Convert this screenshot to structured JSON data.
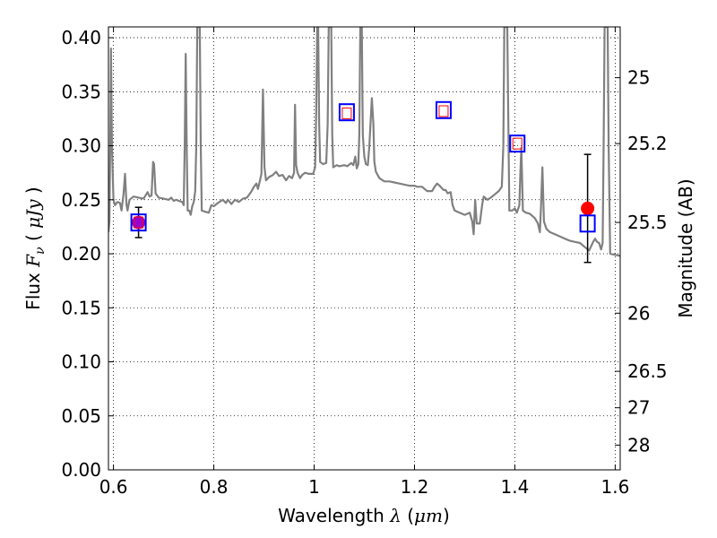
{
  "chart_data": {
    "type": "scatter",
    "xlabel": "Wavelength  λ (μm)",
    "ylabel": "Flux  F_ν ( μJy )",
    "ylabel_parts": {
      "prefix": "Flux  ",
      "symbol": "F",
      "sub": "ν",
      "open": "  (  ",
      "unit": "μJy",
      "close": " )"
    },
    "xlabel_parts": {
      "prefix": "Wavelength  ",
      "symbol": "λ",
      "mid": " (",
      "unit": "μm",
      "close": ")"
    },
    "y2label": "Magnitude (AB)",
    "xlim": [
      0.59,
      1.61
    ],
    "ylim": [
      0.0,
      0.41
    ],
    "grid": true,
    "x_ticks": [
      {
        "value": 0.6,
        "label": "0.6"
      },
      {
        "value": 0.8,
        "label": "0.8"
      },
      {
        "value": 1.0,
        "label": "1"
      },
      {
        "value": 1.2,
        "label": "1.2"
      },
      {
        "value": 1.4,
        "label": "1.4"
      },
      {
        "value": 1.6,
        "label": "1.6"
      }
    ],
    "y_ticks": [
      {
        "value": 0.0,
        "label": "0.00"
      },
      {
        "value": 0.05,
        "label": "0.05"
      },
      {
        "value": 0.1,
        "label": "0.10"
      },
      {
        "value": 0.15,
        "label": "0.15"
      },
      {
        "value": 0.2,
        "label": "0.20"
      },
      {
        "value": 0.25,
        "label": "0.25"
      },
      {
        "value": 0.3,
        "label": "0.30"
      },
      {
        "value": 0.35,
        "label": "0.35"
      },
      {
        "value": 0.4,
        "label": "0.40"
      }
    ],
    "y2_ticks": [
      {
        "flux": 0.363,
        "label": "25"
      },
      {
        "flux": 0.302,
        "label": "25.2"
      },
      {
        "flux": 0.229,
        "label": "25.5"
      },
      {
        "flux": 0.145,
        "label": "26"
      },
      {
        "flux": 0.0912,
        "label": "26.5"
      },
      {
        "flux": 0.0575,
        "label": "27"
      },
      {
        "flux": 0.0229,
        "label": "28"
      }
    ],
    "series": [
      {
        "kind": "line",
        "color": "#808080",
        "points": [
          [
            0.59,
            0.22
          ],
          [
            0.592,
            0.23
          ],
          [
            0.594,
            0.32
          ],
          [
            0.595,
            0.39
          ],
          [
            0.597,
            0.3
          ],
          [
            0.6,
            0.25
          ],
          [
            0.603,
            0.245
          ],
          [
            0.608,
            0.248
          ],
          [
            0.613,
            0.247
          ],
          [
            0.616,
            0.24
          ],
          [
            0.62,
            0.255
          ],
          [
            0.623,
            0.274
          ],
          [
            0.626,
            0.245
          ],
          [
            0.628,
            0.24
          ],
          [
            0.632,
            0.25
          ],
          [
            0.64,
            0.253
          ],
          [
            0.65,
            0.252
          ],
          [
            0.66,
            0.251
          ],
          [
            0.668,
            0.257
          ],
          [
            0.672,
            0.253
          ],
          [
            0.676,
            0.254
          ],
          [
            0.679,
            0.285
          ],
          [
            0.681,
            0.283
          ],
          [
            0.684,
            0.256
          ],
          [
            0.69,
            0.252
          ],
          [
            0.7,
            0.251
          ],
          [
            0.71,
            0.25
          ],
          [
            0.715,
            0.252
          ],
          [
            0.72,
            0.249
          ],
          [
            0.725,
            0.25
          ],
          [
            0.73,
            0.249
          ],
          [
            0.737,
            0.248
          ],
          [
            0.74,
            0.245
          ],
          [
            0.742,
            0.3
          ],
          [
            0.744,
            0.385
          ],
          [
            0.746,
            0.3
          ],
          [
            0.748,
            0.24
          ],
          [
            0.751,
            0.24
          ],
          [
            0.754,
            0.236
          ],
          [
            0.757,
            0.244
          ],
          [
            0.76,
            0.248
          ],
          [
            0.763,
            0.258
          ],
          [
            0.765,
            0.3
          ],
          [
            0.767,
            0.41
          ],
          [
            0.772,
            0.41
          ],
          [
            0.774,
            0.3
          ],
          [
            0.776,
            0.24
          ],
          [
            0.782,
            0.239
          ],
          [
            0.79,
            0.238
          ],
          [
            0.795,
            0.245
          ],
          [
            0.8,
            0.244
          ],
          [
            0.808,
            0.247
          ],
          [
            0.818,
            0.25
          ],
          [
            0.824,
            0.247
          ],
          [
            0.828,
            0.25
          ],
          [
            0.835,
            0.246
          ],
          [
            0.842,
            0.25
          ],
          [
            0.85,
            0.248
          ],
          [
            0.858,
            0.251
          ],
          [
            0.866,
            0.252
          ],
          [
            0.874,
            0.257
          ],
          [
            0.88,
            0.262
          ],
          [
            0.885,
            0.265
          ],
          [
            0.888,
            0.26
          ],
          [
            0.892,
            0.268
          ],
          [
            0.895,
            0.274
          ],
          [
            0.898,
            0.352
          ],
          [
            0.901,
            0.28
          ],
          [
            0.904,
            0.268
          ],
          [
            0.91,
            0.271
          ],
          [
            0.918,
            0.273
          ],
          [
            0.924,
            0.276
          ],
          [
            0.93,
            0.272
          ],
          [
            0.937,
            0.273
          ],
          [
            0.944,
            0.268
          ],
          [
            0.95,
            0.272
          ],
          [
            0.956,
            0.27
          ],
          [
            0.96,
            0.275
          ],
          [
            0.962,
            0.338
          ],
          [
            0.964,
            0.282
          ],
          [
            0.967,
            0.275
          ],
          [
            0.972,
            0.27
          ],
          [
            0.976,
            0.273
          ],
          [
            0.982,
            0.275
          ],
          [
            0.99,
            0.274
          ],
          [
            0.998,
            0.274
          ],
          [
            1.002,
            0.28
          ],
          [
            1.004,
            0.33
          ],
          [
            1.006,
            0.41
          ],
          [
            1.008,
            0.41
          ],
          [
            1.01,
            0.32
          ],
          [
            1.012,
            0.285
          ],
          [
            1.018,
            0.283
          ],
          [
            1.024,
            0.284
          ],
          [
            1.027,
            0.32
          ],
          [
            1.029,
            0.41
          ],
          [
            1.034,
            0.41
          ],
          [
            1.036,
            0.31
          ],
          [
            1.038,
            0.28
          ],
          [
            1.045,
            0.282
          ],
          [
            1.05,
            0.281
          ],
          [
            1.06,
            0.282
          ],
          [
            1.066,
            0.281
          ],
          [
            1.074,
            0.284
          ],
          [
            1.078,
            0.282
          ],
          [
            1.082,
            0.29
          ],
          [
            1.085,
            0.279
          ],
          [
            1.088,
            0.283
          ],
          [
            1.09,
            0.31
          ],
          [
            1.092,
            0.41
          ],
          [
            1.095,
            0.41
          ],
          [
            1.097,
            0.31
          ],
          [
            1.1,
            0.29
          ],
          [
            1.103,
            0.283
          ],
          [
            1.107,
            0.282
          ],
          [
            1.11,
            0.3
          ],
          [
            1.115,
            0.344
          ],
          [
            1.118,
            0.32
          ],
          [
            1.12,
            0.285
          ],
          [
            1.123,
            0.276
          ],
          [
            1.13,
            0.27
          ],
          [
            1.14,
            0.267
          ],
          [
            1.15,
            0.267
          ],
          [
            1.16,
            0.266
          ],
          [
            1.17,
            0.265
          ],
          [
            1.18,
            0.264
          ],
          [
            1.19,
            0.263
          ],
          [
            1.2,
            0.263
          ],
          [
            1.205,
            0.262
          ],
          [
            1.215,
            0.262
          ],
          [
            1.225,
            0.258
          ],
          [
            1.235,
            0.258
          ],
          [
            1.24,
            0.262
          ],
          [
            1.245,
            0.265
          ],
          [
            1.25,
            0.263
          ],
          [
            1.258,
            0.259
          ],
          [
            1.262,
            0.259
          ],
          [
            1.266,
            0.256
          ],
          [
            1.272,
            0.257
          ],
          [
            1.276,
            0.245
          ],
          [
            1.28,
            0.24
          ],
          [
            1.29,
            0.238
          ],
          [
            1.3,
            0.236
          ],
          [
            1.31,
            0.238
          ],
          [
            1.315,
            0.23
          ],
          [
            1.318,
            0.218
          ],
          [
            1.321,
            0.25
          ],
          [
            1.324,
            0.228
          ],
          [
            1.33,
            0.228
          ],
          [
            1.335,
            0.246
          ],
          [
            1.338,
            0.253
          ],
          [
            1.345,
            0.25
          ],
          [
            1.352,
            0.252
          ],
          [
            1.36,
            0.255
          ],
          [
            1.368,
            0.258
          ],
          [
            1.374,
            0.262
          ],
          [
            1.377,
            0.3
          ],
          [
            1.379,
            0.41
          ],
          [
            1.385,
            0.41
          ],
          [
            1.387,
            0.32
          ],
          [
            1.389,
            0.24
          ],
          [
            1.395,
            0.24
          ],
          [
            1.4,
            0.242
          ],
          [
            1.404,
            0.238
          ],
          [
            1.409,
            0.245
          ],
          [
            1.411,
            0.275
          ],
          [
            1.413,
            0.298
          ],
          [
            1.416,
            0.24
          ],
          [
            1.422,
            0.238
          ],
          [
            1.43,
            0.237
          ],
          [
            1.44,
            0.233
          ],
          [
            1.446,
            0.228
          ],
          [
            1.45,
            0.22
          ],
          [
            1.452,
            0.243
          ],
          [
            1.455,
            0.28
          ],
          [
            1.458,
            0.23
          ],
          [
            1.463,
            0.223
          ],
          [
            1.47,
            0.22
          ],
          [
            1.48,
            0.218
          ],
          [
            1.49,
            0.216
          ],
          [
            1.5,
            0.214
          ],
          [
            1.51,
            0.212
          ],
          [
            1.52,
            0.211
          ],
          [
            1.53,
            0.21
          ],
          [
            1.54,
            0.206
          ],
          [
            1.548,
            0.203
          ],
          [
            1.556,
            0.211
          ],
          [
            1.56,
            0.214
          ],
          [
            1.564,
            0.211
          ],
          [
            1.568,
            0.21
          ],
          [
            1.572,
            0.204
          ],
          [
            1.575,
            0.21
          ],
          [
            1.577,
            0.3
          ],
          [
            1.579,
            0.41
          ],
          [
            1.585,
            0.41
          ],
          [
            1.587,
            0.3
          ],
          [
            1.59,
            0.2
          ],
          [
            1.6,
            0.199
          ],
          [
            1.61,
            0.198
          ]
        ]
      },
      {
        "kind": "observed",
        "color": "#ff0000",
        "points": [
          {
            "x": 0.65,
            "y": 0.229,
            "yerr": 0.014,
            "color": "#9900cc"
          },
          {
            "x": 1.545,
            "y": 0.242,
            "yerr": 0.05,
            "color": "#ff0000"
          }
        ]
      },
      {
        "kind": "model",
        "color": "#0000ff",
        "points": [
          {
            "x": 0.65,
            "y": 0.229
          },
          {
            "x": 1.065,
            "y": 0.331
          },
          {
            "x": 1.258,
            "y": 0.333
          },
          {
            "x": 1.405,
            "y": 0.302
          },
          {
            "x": 1.545,
            "y": 0.228
          }
        ]
      },
      {
        "kind": "model-inner",
        "color": "#ff0000",
        "points": [
          {
            "x": 0.65,
            "y": 0.229
          },
          {
            "x": 1.065,
            "y": 0.33
          },
          {
            "x": 1.258,
            "y": 0.332
          },
          {
            "x": 1.405,
            "y": 0.302
          }
        ]
      }
    ]
  }
}
